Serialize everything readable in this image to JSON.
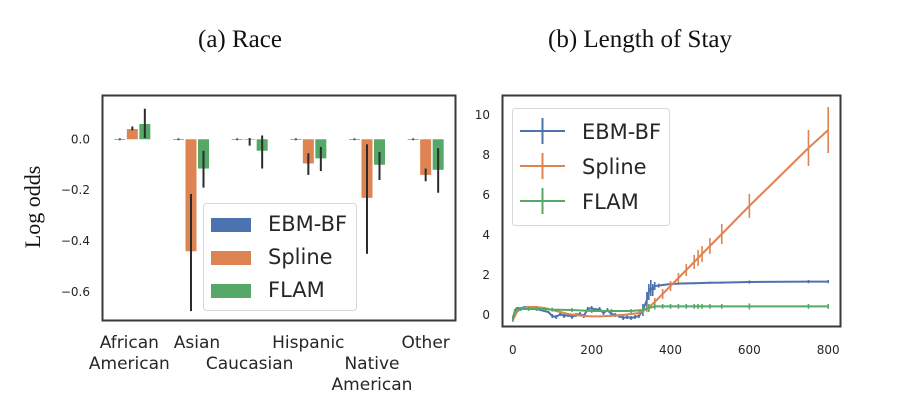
{
  "captions": {
    "a": "(a) Race",
    "b": "(b) Length of Stay"
  },
  "colors": {
    "EBM-BF": "#4c72b0",
    "Spline": "#dd8452",
    "FLAM": "#55a868",
    "errorbar": "#2b2b2b",
    "axes": "#3a3a3a"
  },
  "chart_data": [
    {
      "type": "bar",
      "title": "(a) Race",
      "xlabel": "",
      "ylabel": "Log odds",
      "ylim": [
        -0.71,
        0.17
      ],
      "yticks": [
        0.0,
        -0.2,
        -0.4,
        -0.6
      ],
      "ytick_labels": [
        "0.0",
        "−0.2",
        "−0.4",
        "−0.6"
      ],
      "categories": [
        "African American",
        "Asian",
        "Caucasian",
        "Hispanic",
        "Native American",
        "Other"
      ],
      "category_lines": [
        [
          "African",
          "American"
        ],
        [
          "Asian"
        ],
        [
          "",
          "Caucasian"
        ],
        [
          "Hispanic"
        ],
        [
          "",
          "Native",
          "American"
        ],
        [
          "Other"
        ]
      ],
      "legend": {
        "entries": [
          "EBM-BF",
          "Spline",
          "FLAM"
        ],
        "position": "lower-center"
      },
      "grid": false,
      "series": [
        {
          "name": "EBM-BF",
          "values": [
            0.0,
            0.0,
            0.0,
            0.0,
            0.0,
            0.0
          ],
          "err_low": [
            0,
            0,
            0,
            0,
            0,
            0
          ],
          "err_high": [
            0,
            0,
            0,
            0,
            0,
            0
          ]
        },
        {
          "name": "Spline",
          "values": [
            0.04,
            -0.44,
            -0.002,
            -0.095,
            -0.23,
            -0.14
          ],
          "err_low": [
            0.035,
            -0.675,
            -0.025,
            -0.14,
            -0.45,
            -0.165
          ],
          "err_high": [
            0.05,
            -0.215,
            0.005,
            -0.055,
            -0.02,
            -0.115
          ]
        },
        {
          "name": "FLAM",
          "values": [
            0.06,
            -0.115,
            -0.045,
            -0.075,
            -0.1,
            -0.12
          ],
          "err_low": [
            0.005,
            -0.19,
            -0.115,
            -0.125,
            -0.16,
            -0.21
          ],
          "err_high": [
            0.12,
            -0.045,
            0.015,
            -0.03,
            -0.05,
            -0.035
          ]
        }
      ]
    },
    {
      "type": "line",
      "title": "(b) Length of Stay",
      "xlabel": "",
      "ylabel": "",
      "xlim": [
        -25,
        830
      ],
      "ylim": [
        -0.6,
        10.9
      ],
      "xticks": [
        0,
        200,
        400,
        600,
        800
      ],
      "yticks": [
        0,
        2,
        4,
        6,
        8,
        10
      ],
      "legend": {
        "entries": [
          "EBM-BF",
          "Spline",
          "FLAM"
        ],
        "position": "top-left"
      },
      "grid": false,
      "series": [
        {
          "name": "EBM-BF",
          "x": [
            0,
            5,
            10,
            20,
            30,
            40,
            50,
            60,
            70,
            80,
            90,
            100,
            110,
            120,
            130,
            140,
            150,
            160,
            170,
            180,
            190,
            200,
            210,
            220,
            230,
            240,
            250,
            260,
            270,
            280,
            290,
            300,
            310,
            320,
            330,
            340,
            345,
            350,
            355,
            360,
            370,
            380,
            400,
            420,
            440,
            460,
            480,
            500,
            530,
            600,
            750,
            800
          ],
          "y": [
            -0.2,
            0.15,
            0.3,
            0.28,
            0.35,
            0.32,
            0.3,
            0.25,
            0.2,
            0.15,
            0.1,
            -0.1,
            -0.15,
            0.0,
            -0.1,
            -0.05,
            -0.15,
            -0.05,
            0.0,
            -0.1,
            0.25,
            0.3,
            0.2,
            0.25,
            0.05,
            0.2,
            0.0,
            -0.05,
            -0.1,
            -0.2,
            -0.15,
            -0.2,
            -0.15,
            -0.1,
            0.2,
            0.7,
            1.1,
            1.3,
            1.2,
            1.4,
            1.42,
            1.45,
            1.5,
            1.52,
            1.53,
            1.54,
            1.55,
            1.56,
            1.57,
            1.6,
            1.62,
            1.62
          ],
          "err": [
            0.1,
            0.1,
            0.05,
            0.05,
            0.05,
            0.05,
            0.05,
            0.05,
            0.05,
            0.05,
            0.05,
            0.1,
            0.1,
            0.1,
            0.1,
            0.1,
            0.1,
            0.1,
            0.1,
            0.1,
            0.1,
            0.1,
            0.1,
            0.1,
            0.1,
            0.1,
            0.1,
            0.1,
            0.1,
            0.1,
            0.1,
            0.1,
            0.1,
            0.1,
            0.3,
            0.4,
            0.4,
            0.4,
            0.3,
            0.2,
            0.1,
            0.05,
            0.05,
            0.05,
            0.05,
            0.05,
            0.05,
            0.05,
            0.05,
            0.08,
            0.08,
            0.08
          ]
        },
        {
          "name": "Spline",
          "x": [
            0,
            10,
            20,
            40,
            60,
            80,
            100,
            120,
            140,
            160,
            180,
            200,
            220,
            240,
            260,
            280,
            300,
            320,
            340,
            360,
            380,
            400,
            420,
            440,
            460,
            470,
            480,
            500,
            530,
            600,
            750,
            800
          ],
          "y": [
            -0.3,
            0.1,
            0.25,
            0.35,
            0.35,
            0.3,
            0.2,
            0.1,
            0.0,
            -0.05,
            -0.1,
            -0.12,
            -0.12,
            -0.1,
            -0.08,
            -0.05,
            0.0,
            0.05,
            0.25,
            0.6,
            1.0,
            1.4,
            1.8,
            2.2,
            2.6,
            2.8,
            3.0,
            3.4,
            4.0,
            5.4,
            8.3,
            9.2
          ],
          "err": [
            0.1,
            0.05,
            0.05,
            0.05,
            0.05,
            0.05,
            0.05,
            0.05,
            0.05,
            0.05,
            0.05,
            0.05,
            0.05,
            0.05,
            0.05,
            0.05,
            0.05,
            0.1,
            0.15,
            0.2,
            0.25,
            0.25,
            0.25,
            0.3,
            0.35,
            0.4,
            0.4,
            0.4,
            0.5,
            0.6,
            0.9,
            1.15
          ]
        },
        {
          "name": "FLAM",
          "x": [
            0,
            5,
            10,
            20,
            40,
            60,
            80,
            100,
            150,
            200,
            250,
            300,
            330,
            345,
            360,
            380,
            400,
            420,
            440,
            460,
            470,
            480,
            500,
            530,
            600,
            750,
            800
          ],
          "y": [
            -0.25,
            0.1,
            0.2,
            0.25,
            0.25,
            0.25,
            0.25,
            0.22,
            0.2,
            0.15,
            0.15,
            0.15,
            0.2,
            0.3,
            0.38,
            0.38,
            0.38,
            0.38,
            0.38,
            0.38,
            0.38,
            0.38,
            0.38,
            0.38,
            0.38,
            0.38,
            0.38
          ],
          "err": [
            0.1,
            0.1,
            0.1,
            0.1,
            0.1,
            0.1,
            0.1,
            0.1,
            0.1,
            0.1,
            0.1,
            0.1,
            0.15,
            0.2,
            0.15,
            0.12,
            0.12,
            0.12,
            0.12,
            0.12,
            0.12,
            0.12,
            0.12,
            0.12,
            0.15,
            0.12,
            0.12
          ]
        }
      ]
    }
  ]
}
